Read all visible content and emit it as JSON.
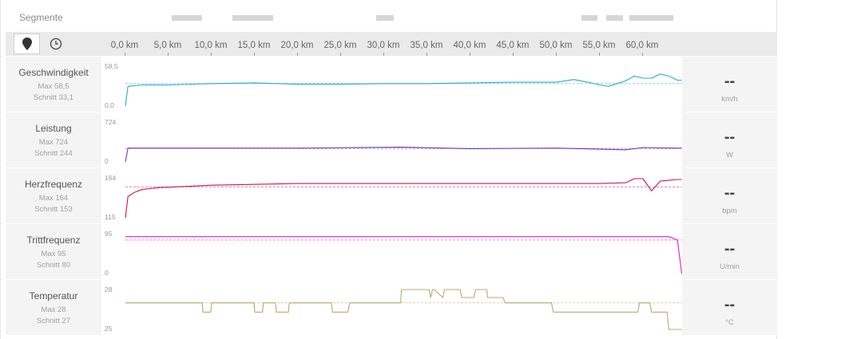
{
  "segments": {
    "label": "Segmente",
    "bars": [
      [
        5.5,
        9.0
      ],
      [
        12.5,
        17.2
      ],
      [
        29.2,
        31.2
      ],
      [
        53.0,
        54.8
      ],
      [
        55.8,
        57.8
      ],
      [
        58.5,
        63.6
      ]
    ]
  },
  "toolbar": {
    "map_icon": "map-pin-icon",
    "time_icon": "clock-icon"
  },
  "axis": {
    "max_km": 64.5,
    "ticks": [
      "0,0 km",
      "5,0 km",
      "10,0 km",
      "15,0 km",
      "20,0 km",
      "25,0 km",
      "30,0 km",
      "35,0 km",
      "40,0 km",
      "45,0 km",
      "50,0 km",
      "55,0 km",
      "60,0 km"
    ]
  },
  "colors": {
    "speed": "#2ba8d6",
    "power": "#6a3cb5",
    "heart_rate": "#c6184f",
    "cadence": "#e020d0",
    "temperature": "#b6ab6e"
  },
  "tracks": [
    {
      "key": "speed",
      "name": "Geschwindigkeit",
      "max": "Max 58,5",
      "avg": "Schnitt 33,1",
      "y_top": "58,5",
      "y_bottom": "0,0",
      "value": "--",
      "unit": "km/h"
    },
    {
      "key": "power",
      "name": "Leistung",
      "max": "Max 724",
      "avg": "Schnitt 244",
      "y_top": "724",
      "y_bottom": "0",
      "value": "--",
      "unit": "W"
    },
    {
      "key": "heart_rate",
      "name": "Herzfrequenz",
      "max": "Max 164",
      "avg": "Schnitt 153",
      "y_top": "164",
      "y_bottom": "115",
      "value": "--",
      "unit": "bpm"
    },
    {
      "key": "cadence",
      "name": "Trittfrequenz",
      "max": "Max 95",
      "avg": "Schnitt 80",
      "y_top": "95",
      "y_bottom": "0",
      "value": "--",
      "unit": "U/min"
    },
    {
      "key": "temperature",
      "name": "Temperatur",
      "max": "Max 28",
      "avg": "Schnitt 27",
      "y_top": "28",
      "y_bottom": "25",
      "value": "--",
      "unit": "°C"
    }
  ],
  "chart_data": [
    {
      "type": "line",
      "series": "speed",
      "ylim": [
        0,
        58.5
      ],
      "average": 33.1,
      "x": [
        0,
        0.3,
        2,
        5,
        10,
        15,
        20,
        25,
        30,
        35,
        40,
        45,
        50,
        52,
        54,
        55,
        56,
        57,
        58,
        59,
        60,
        61,
        62,
        63,
        64,
        64.5
      ],
      "y": [
        0,
        29,
        31,
        31,
        33,
        34,
        32,
        32,
        33,
        33,
        34,
        35,
        35,
        39,
        34,
        31,
        29,
        33,
        37,
        44,
        41,
        41,
        47,
        44,
        38,
        38
      ]
    },
    {
      "type": "line",
      "series": "power",
      "ylim": [
        0,
        724
      ],
      "average": 244,
      "x": [
        0,
        0.3,
        10,
        20,
        32,
        40,
        50,
        58,
        60,
        64,
        64.5
      ],
      "y": [
        0,
        250,
        250,
        250,
        270,
        240,
        250,
        220,
        260,
        250,
        250
      ]
    },
    {
      "type": "line",
      "series": "heart_rate",
      "ylim": [
        115,
        164
      ],
      "average": 153,
      "x": [
        0,
        0.3,
        1,
        2,
        4,
        10,
        20,
        30,
        40,
        45,
        50,
        55,
        58,
        59,
        60,
        61,
        62,
        63,
        64,
        64.5
      ],
      "y": [
        115,
        141,
        146,
        150,
        152,
        155,
        157,
        157,
        157,
        157,
        157,
        157,
        158,
        163,
        163,
        148,
        160,
        161,
        162,
        162
      ]
    },
    {
      "type": "line",
      "series": "cadence",
      "ylim": [
        0,
        95
      ],
      "average": 80,
      "x": [
        0,
        0.3,
        10,
        20,
        30,
        40,
        50,
        60,
        63,
        64,
        64.5
      ],
      "y": [
        88,
        88,
        88,
        88,
        88,
        88,
        88,
        88,
        88,
        80,
        0
      ]
    },
    {
      "type": "line",
      "series": "temperature",
      "ylim": [
        25,
        28
      ],
      "average": 27,
      "x": [
        0,
        8.9,
        9,
        9.9,
        10,
        14.9,
        15,
        15.9,
        16,
        17.4,
        17.5,
        18.9,
        19,
        23.9,
        24,
        25.8,
        26,
        31.9,
        32,
        35.2,
        35.4,
        35.6,
        35.8,
        36.8,
        37,
        38.8,
        39,
        40.4,
        40.6,
        41.9,
        42,
        43.8,
        44,
        49.4,
        49.6,
        59.4,
        59.6,
        60.8,
        61,
        62.8,
        63,
        64.5
      ],
      "y": [
        27,
        27,
        26.3,
        26.3,
        27,
        27,
        26.3,
        26.3,
        27,
        27,
        26.3,
        26.3,
        27,
        27,
        26.3,
        26.3,
        27,
        27,
        28,
        28,
        27.4,
        28,
        28,
        27.4,
        28,
        28,
        27.4,
        27.4,
        28,
        28,
        27.4,
        27.4,
        27,
        27,
        26.3,
        26.3,
        27,
        27,
        26.3,
        26.3,
        25,
        25
      ]
    }
  ]
}
